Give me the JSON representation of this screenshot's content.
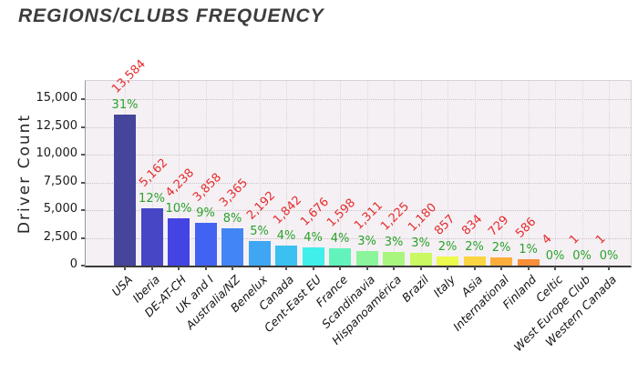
{
  "page": {
    "title": "REGIONS/CLUBS FREQUENCY"
  },
  "chart_data": {
    "type": "bar",
    "title": "REGIONS/CLUBS FREQUENCY",
    "ylabel": "Driver Count",
    "xlabel": "",
    "ylim": [
      0,
      16600
    ],
    "grid": true,
    "legend": false,
    "yticks": [
      0,
      2500,
      5000,
      7500,
      10000,
      12500,
      15000
    ],
    "ytick_labels": [
      "0",
      "2,500",
      "5,000",
      "7,500",
      "10,000",
      "12,500",
      "15,000"
    ],
    "categories": [
      "USA",
      "Iberia",
      "DE-AT-CH",
      "UK and I",
      "Australia/NZ",
      "Benelux",
      "Canada",
      "Cent-East EU",
      "France",
      "Scandinavia",
      "Hispanoamérica",
      "Brazil",
      "Italy",
      "Asia",
      "International",
      "Finland",
      "Celtic",
      "West Europe Club",
      "Western Canada"
    ],
    "values": [
      13584,
      5162,
      4238,
      3858,
      3365,
      2192,
      1842,
      1676,
      1598,
      1311,
      1225,
      1180,
      857,
      834,
      729,
      586,
      4,
      1,
      1
    ],
    "value_labels": [
      "13,584",
      "5,162",
      "4,238",
      "3,858",
      "3,365",
      "2,192",
      "1,842",
      "1,676",
      "1,598",
      "1,311",
      "1,225",
      "1,180",
      "857",
      "834",
      "729",
      "586",
      "4",
      "1",
      "1"
    ],
    "percent_labels": [
      "31%",
      "12%",
      "10%",
      "9%",
      "8%",
      "5%",
      "4%",
      "4%",
      "4%",
      "3%",
      "3%",
      "3%",
      "2%",
      "2%",
      "2%",
      "1%",
      "0%",
      "0%",
      "0%"
    ],
    "bar_colors": [
      "#45459b",
      "#4747c6",
      "#4444e4",
      "#4263f2",
      "#4286f5",
      "#3fa6f3",
      "#3ac0f1",
      "#40efe9",
      "#62f3bb",
      "#8af59b",
      "#a9f67e",
      "#c9f862",
      "#ecfa4e",
      "#fbd441",
      "#fcae3b",
      "#f98d38",
      "#f86430",
      "#f53d26",
      "#e9241f"
    ],
    "colors": {
      "value_label": "#e52b2b",
      "percent_label": "#2aa22a",
      "plot_bg": "#f5f0f4",
      "axis": "#3a3a3a",
      "title": "#3d3d3d"
    }
  }
}
